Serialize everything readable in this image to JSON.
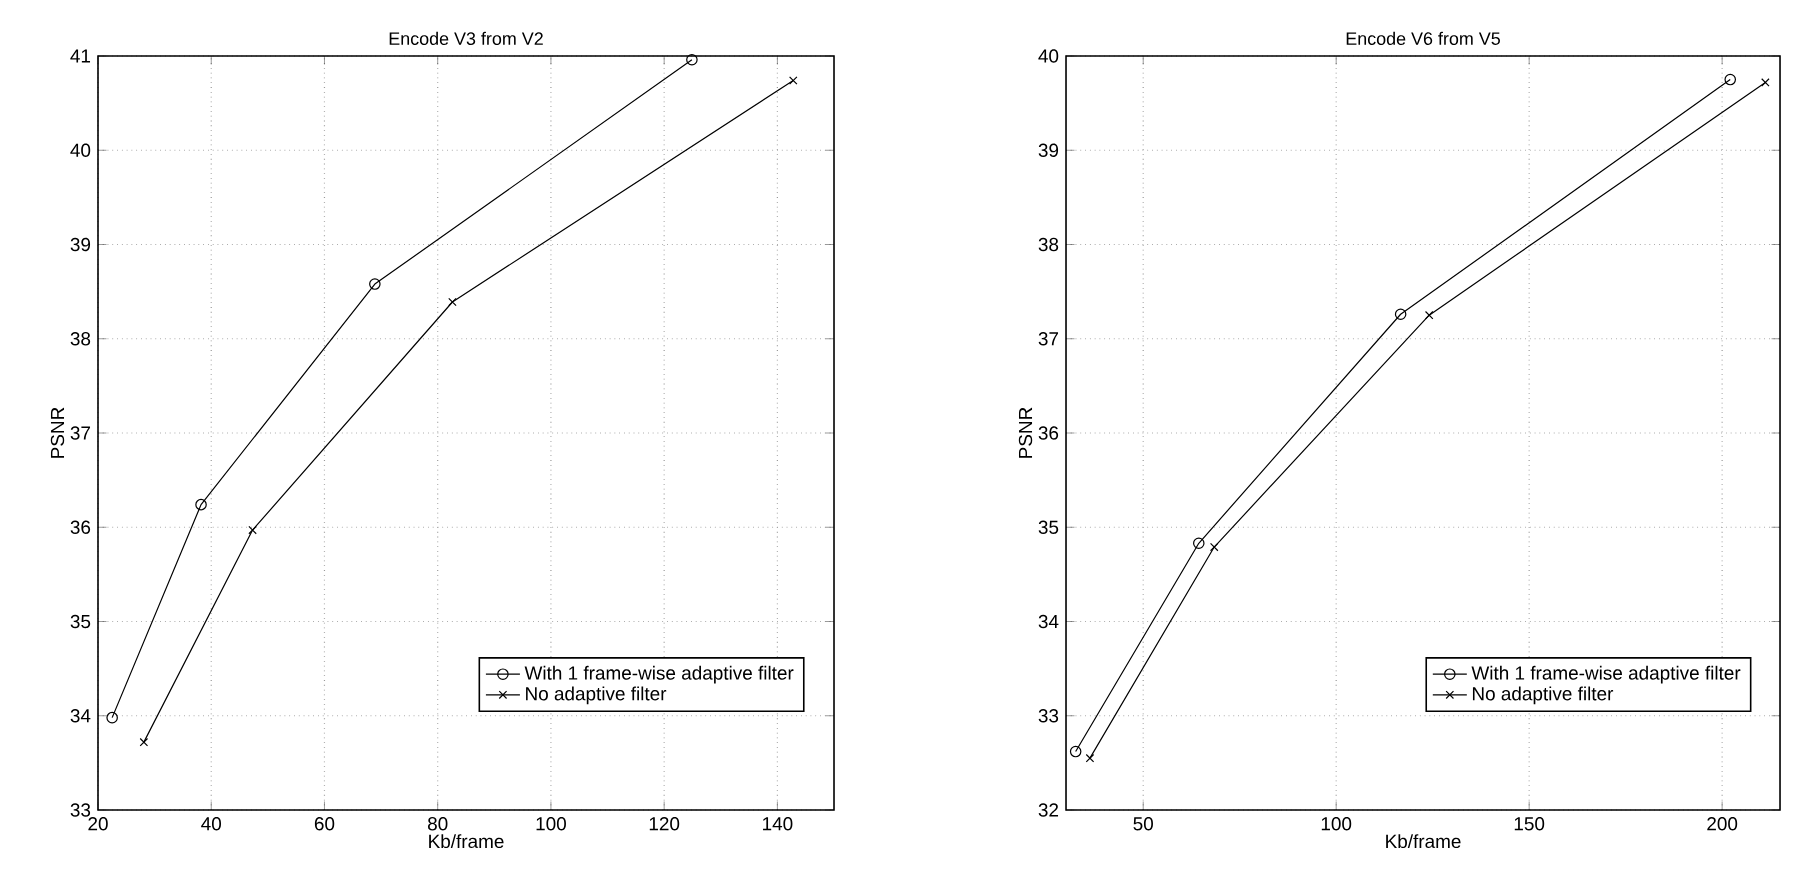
{
  "chart_data": [
    {
      "type": "line",
      "title": "Encode V3 from V2",
      "xlabel": "Kb/frame",
      "ylabel": "PSNR",
      "xlim": [
        20,
        150
      ],
      "xticks": [
        20,
        40,
        60,
        80,
        100,
        120,
        140
      ],
      "ylim": [
        33,
        41
      ],
      "yticks": [
        33,
        34,
        35,
        36,
        37,
        38,
        39,
        40,
        41
      ],
      "grid": true,
      "legend": "bottom right",
      "line_style": "solid",
      "series": [
        {
          "name": "With 1 frame-wise adaptive filter",
          "color": "#000000",
          "marker": "circle",
          "x": [
            22.5,
            38.2,
            68.9,
            124.9
          ],
          "values": [
            33.98,
            36.24,
            38.58,
            40.96
          ]
        },
        {
          "name": "No adaptive filter",
          "color": "#000000",
          "marker": "cross",
          "x": [
            28.1,
            47.3,
            82.6,
            142.8
          ],
          "values": [
            33.72,
            35.97,
            38.39,
            40.74
          ]
        }
      ]
    },
    {
      "type": "line",
      "title": "Encode V6 from V5",
      "xlabel": "Kb/frame",
      "ylabel": "PSNR",
      "xlim": [
        30,
        215
      ],
      "xticks": [
        50,
        100,
        150,
        200
      ],
      "ylim": [
        32,
        40
      ],
      "yticks": [
        32,
        33,
        34,
        35,
        36,
        37,
        38,
        39,
        40
      ],
      "grid": true,
      "legend": "bottom right",
      "line_style": "solid",
      "series": [
        {
          "name": "With 1 frame-wise adaptive filter",
          "color": "#000000",
          "marker": "circle",
          "x": [
            32.5,
            64.4,
            116.7,
            202.1
          ],
          "values": [
            32.62,
            34.83,
            37.26,
            39.75
          ]
        },
        {
          "name": "No adaptive filter",
          "color": "#000000",
          "marker": "cross",
          "x": [
            36.2,
            68.4,
            124.1,
            211.2
          ],
          "values": [
            32.55,
            34.79,
            37.25,
            39.72
          ]
        }
      ]
    }
  ]
}
